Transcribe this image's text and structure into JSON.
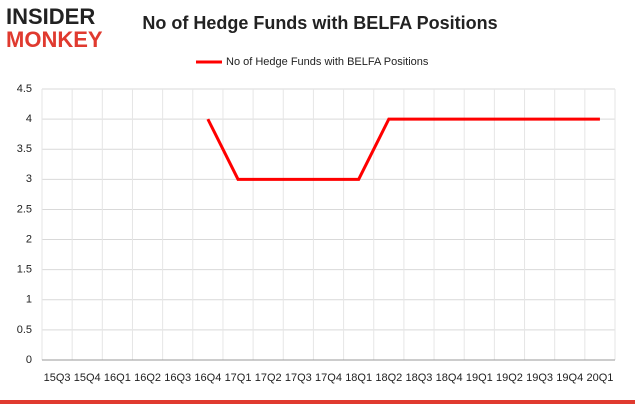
{
  "logo": {
    "top": "INSIDER",
    "bottom": "MONKEY"
  },
  "chart_data": {
    "type": "line",
    "title": "No of Hedge Funds with BELFA Positions",
    "categories": [
      "15Q3",
      "15Q4",
      "16Q1",
      "16Q2",
      "16Q3",
      "16Q4",
      "17Q1",
      "17Q2",
      "17Q3",
      "17Q4",
      "18Q1",
      "18Q2",
      "18Q3",
      "18Q4",
      "19Q1",
      "19Q2",
      "19Q3",
      "19Q4",
      "20Q1"
    ],
    "series": [
      {
        "name": "No of Hedge Funds with BELFA Positions",
        "color": "#ff0000",
        "values": [
          null,
          null,
          null,
          null,
          null,
          4,
          3,
          3,
          3,
          3,
          3,
          4,
          4,
          4,
          4,
          4,
          4,
          4,
          4
        ]
      }
    ],
    "ylim": [
      0,
      4.5
    ],
    "yticks": [
      0,
      0.5,
      1,
      1.5,
      2,
      2.5,
      3,
      3.5,
      4,
      4.5
    ],
    "grid": true,
    "legend": "top"
  }
}
